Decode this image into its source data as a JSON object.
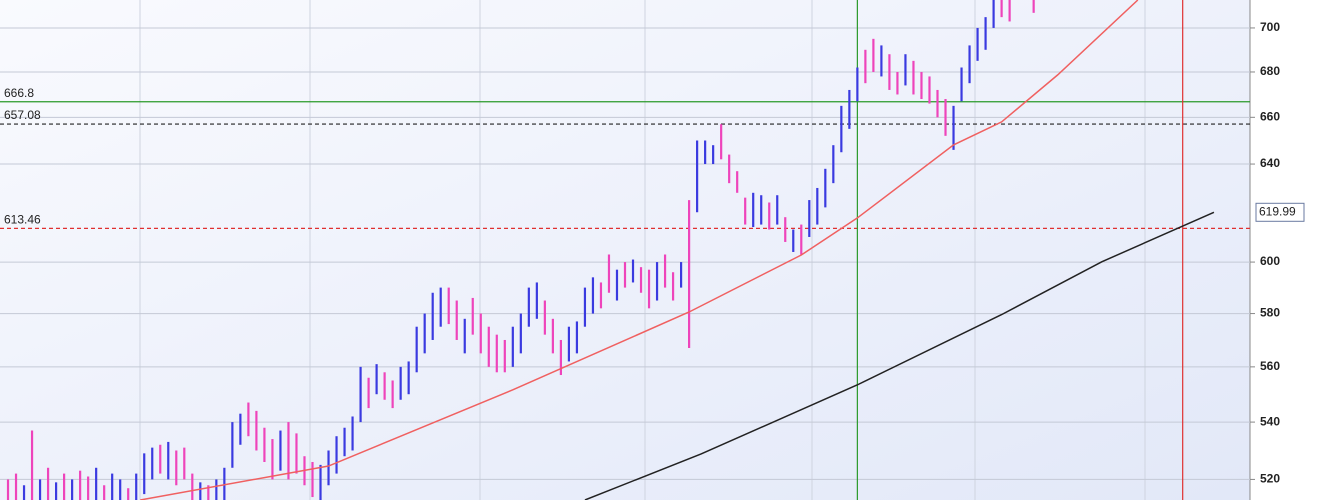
{
  "chart_data": {
    "type": "ohlc",
    "xlim": [
      0,
      156
    ],
    "ylim": [
      513,
      713
    ],
    "ylog": true,
    "yticks": [
      520,
      540,
      560,
      580,
      600,
      640,
      660,
      680,
      700
    ],
    "grid": true,
    "bars": [
      {
        "color": "#3a3ae0",
        "x": [
          3,
          5,
          7,
          9,
          12,
          14,
          15,
          17,
          18,
          19,
          21,
          25,
          27,
          28,
          29,
          30,
          35,
          40,
          41,
          42,
          43,
          44,
          45,
          47,
          50,
          51,
          52,
          53,
          54,
          55,
          58,
          64,
          65,
          66,
          67,
          71,
          72,
          73,
          74,
          77,
          79,
          82,
          85,
          87,
          88,
          89,
          94,
          95,
          97,
          99,
          101,
          102,
          103,
          104,
          105,
          106,
          107,
          110,
          113,
          119,
          120,
          121,
          122,
          123,
          124
        ],
        "low": [
          508,
          510,
          508,
          510,
          512,
          512,
          506,
          512,
          515,
          520,
          520,
          508,
          508,
          510,
          524,
          532,
          523,
          513,
          518,
          522,
          528,
          530,
          540,
          550,
          548,
          550,
          558,
          565,
          570,
          575,
          565,
          560,
          565,
          575,
          578,
          562,
          565,
          575,
          580,
          585,
          592,
          585,
          590,
          620,
          640,
          640,
          614,
          615,
          615,
          604,
          610,
          615,
          622,
          632,
          645,
          655,
          667,
          678,
          674,
          646,
          667,
          675,
          685,
          690,
          700
        ],
        "high": [
          518,
          520,
          519,
          520,
          524,
          522,
          520,
          522,
          529,
          531,
          533,
          519,
          520,
          524,
          540,
          543,
          537,
          525,
          530,
          535,
          538,
          542,
          560,
          561,
          560,
          562,
          575,
          580,
          588,
          590,
          578,
          575,
          580,
          590,
          592,
          575,
          577,
          590,
          594,
          597,
          601,
          600,
          600,
          650,
          650,
          648,
          628,
          627,
          627,
          613,
          625,
          630,
          638,
          648,
          665,
          672,
          682,
          692,
          688,
          665,
          682,
          692,
          700,
          705,
          713
        ]
      },
      {
        "color": "#ee44bb",
        "x": [
          1,
          2,
          4,
          6,
          8,
          10,
          11,
          13,
          16,
          20,
          22,
          23,
          24,
          26,
          31,
          32,
          33,
          34,
          36,
          37,
          38,
          39,
          46,
          48,
          49,
          56,
          57,
          59,
          60,
          61,
          62,
          63,
          68,
          69,
          70,
          75,
          76,
          78,
          80,
          81,
          83,
          84,
          86,
          90,
          91,
          92,
          93,
          96,
          98,
          100,
          108,
          109,
          111,
          112,
          114,
          115,
          116,
          117,
          118,
          125,
          126,
          129
        ],
        "low": [
          510,
          512,
          513,
          512,
          512,
          513,
          510,
          509,
          508,
          522,
          518,
          520,
          510,
          506,
          535,
          530,
          526,
          520,
          520,
          522,
          518,
          514,
          545,
          548,
          545,
          576,
          570,
          572,
          565,
          560,
          558,
          558,
          572,
          565,
          557,
          582,
          588,
          590,
          588,
          582,
          590,
          585,
          567,
          642,
          632,
          628,
          615,
          613,
          608,
          603,
          675,
          680,
          672,
          670,
          670,
          668,
          666,
          660,
          652,
          705,
          703,
          707
        ],
        "high": [
          520,
          522,
          537,
          524,
          522,
          523,
          521,
          518,
          517,
          532,
          530,
          531,
          522,
          518,
          547,
          544,
          538,
          534,
          540,
          536,
          528,
          526,
          556,
          558,
          555,
          590,
          585,
          586,
          580,
          575,
          572,
          570,
          585,
          578,
          570,
          592,
          603,
          600,
          598,
          597,
          603,
          596,
          625,
          657,
          644,
          637,
          626,
          624,
          618,
          615,
          690,
          695,
          688,
          680,
          685,
          680,
          678,
          672,
          668,
          713,
          713,
          713
        ]
      }
    ],
    "lines": [
      {
        "color": "#f06060",
        "x": [
          17.5,
          41,
          64,
          86,
          100,
          107,
          119,
          125,
          132,
          142
        ],
        "values": [
          513,
          524.6,
          551.6,
          580.6,
          602.8,
          617.7,
          648.1,
          658,
          678.7,
          713
        ]
      },
      {
        "color": "#222222",
        "x": [
          73,
          87.5,
          107,
          125,
          137.5,
          151.5
        ],
        "values": [
          513,
          528.8,
          553.4,
          579.6,
          600.1,
          619.99
        ]
      }
    ],
    "hlines": [
      {
        "value": 666.8,
        "color": "#2a9a2a",
        "dash": false
      },
      {
        "value": 657.08,
        "color": "#222222",
        "dash": true
      },
      {
        "value": 613.46,
        "color": "#e03030",
        "dash": true
      }
    ],
    "vlines": [
      {
        "x": 107,
        "color": "#2a9a2a"
      },
      {
        "x": 147.6,
        "color": "#e03030"
      }
    ]
  }
}
